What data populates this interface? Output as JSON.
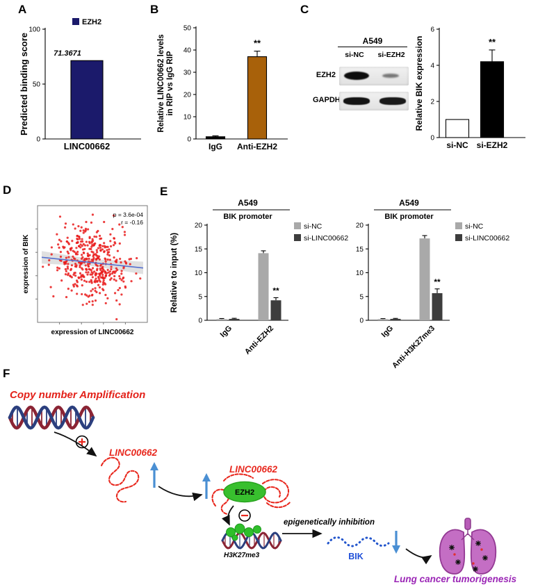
{
  "panels": {
    "a": "A",
    "b": "B",
    "c": "C",
    "d": "D",
    "e": "E",
    "f": "F"
  },
  "palette": {
    "navy": "#1b1a6b",
    "brown": "#a8610a",
    "gray_series": "#a9a9a9",
    "dark_series": "#3d3d3d",
    "red": "#e8281e",
    "blue": "#4a8fd3",
    "green": "#38bf2e",
    "purple": "#9b26b6",
    "scatter_red": "#e91c1c",
    "trend_blue": "#5570cf"
  },
  "chart_data": [
    {
      "id": "A",
      "type": "bar",
      "categories": [
        "LINC00662"
      ],
      "values": [
        71.3671
      ],
      "value_labels": [
        "71.3671"
      ],
      "bar_colors": [
        "#1b1a6b"
      ],
      "ylabel": "Predicted binding score",
      "ylim": [
        0,
        100
      ],
      "yticks": [
        0,
        50,
        100
      ],
      "legend": [
        {
          "label": "EZH2",
          "color": "#1b1a6b"
        }
      ]
    },
    {
      "id": "B",
      "type": "bar",
      "categories": [
        "IgG",
        "Anti-EZH2"
      ],
      "values": [
        1,
        37
      ],
      "errors": [
        0.4,
        2.5
      ],
      "bar_colors": [
        "#000000",
        "#a8610a"
      ],
      "sig": [
        "",
        "**"
      ],
      "ylabel_lines": [
        "Relative LINC00662 levels",
        "in RIP vs IgG RIP"
      ],
      "ylim": [
        0,
        50
      ],
      "yticks": [
        0,
        10,
        20,
        30,
        40,
        50
      ]
    },
    {
      "id": "C",
      "type": "bar",
      "categories": [
        "si-NC",
        "si-EZH2"
      ],
      "values": [
        1,
        4.2
      ],
      "errors": [
        0,
        0.65
      ],
      "bar_colors": [
        "#ffffff",
        "#000000"
      ],
      "sig": [
        "",
        "**"
      ],
      "ylabel": "Relative BIK expression",
      "ylim": [
        0,
        6
      ],
      "yticks": [
        0,
        2,
        4,
        6
      ]
    },
    {
      "id": "D",
      "type": "scatter",
      "xlabel": "expression of LINC00662",
      "ylabel": "expression of BIK",
      "annotation_lines": [
        "p = 3.6e-04",
        "r = -0.16"
      ],
      "n_points": 430,
      "pearson_r": -0.16
    },
    {
      "id": "E1",
      "type": "grouped_bar",
      "title": "A549",
      "subtitle": "BIK promoter",
      "categories": [
        "IgG",
        "Anti-EZH2"
      ],
      "series": [
        {
          "name": "si-NC",
          "color": "#a9a9a9",
          "values": [
            0.25,
            14.1
          ],
          "errors": [
            0.12,
            0.5
          ]
        },
        {
          "name": "si-LINC00662",
          "color": "#3d3d3d",
          "values": [
            0.3,
            4.2
          ],
          "errors": [
            0.12,
            0.55
          ]
        }
      ],
      "sig": [
        {
          "category": "Anti-EZH2",
          "series": "si-LINC00662",
          "label": "**"
        }
      ],
      "ylabel": "Relative to input (%)",
      "ylim": [
        0,
        20
      ],
      "yticks": [
        0,
        5,
        10,
        15,
        20
      ]
    },
    {
      "id": "E2",
      "type": "grouped_bar",
      "title": "A549",
      "subtitle": "BIK promoter",
      "categories": [
        "IgG",
        "Anti-H3K27me3"
      ],
      "series": [
        {
          "name": "si-NC",
          "color": "#a9a9a9",
          "values": [
            0.25,
            17.2
          ],
          "errors": [
            0.1,
            0.6
          ]
        },
        {
          "name": "si-LINC00662",
          "color": "#3d3d3d",
          "values": [
            0.3,
            5.7
          ],
          "errors": [
            0.1,
            0.9
          ]
        }
      ],
      "sig": [
        {
          "category": "Anti-H3K27me3",
          "series": "si-LINC00662",
          "label": "**"
        }
      ],
      "ylim": [
        0,
        20
      ],
      "yticks": [
        0,
        5,
        10,
        15,
        20
      ]
    }
  ],
  "blot": {
    "cell_line": "A549",
    "lanes": [
      "si-NC",
      "si-EZH2"
    ],
    "rows": [
      "EZH2",
      "GAPDH"
    ]
  },
  "diagram": {
    "copy_number": "Copy number Amplification",
    "linc_1": "LINC00662",
    "linc_2": "LINC00662",
    "ezh2": "EZH2",
    "h3k27me3": "H3K27me3",
    "inhibition": "epigenetically inhibition",
    "bik": "BIK",
    "outcome": "Lung cancer tumorigenesis"
  }
}
